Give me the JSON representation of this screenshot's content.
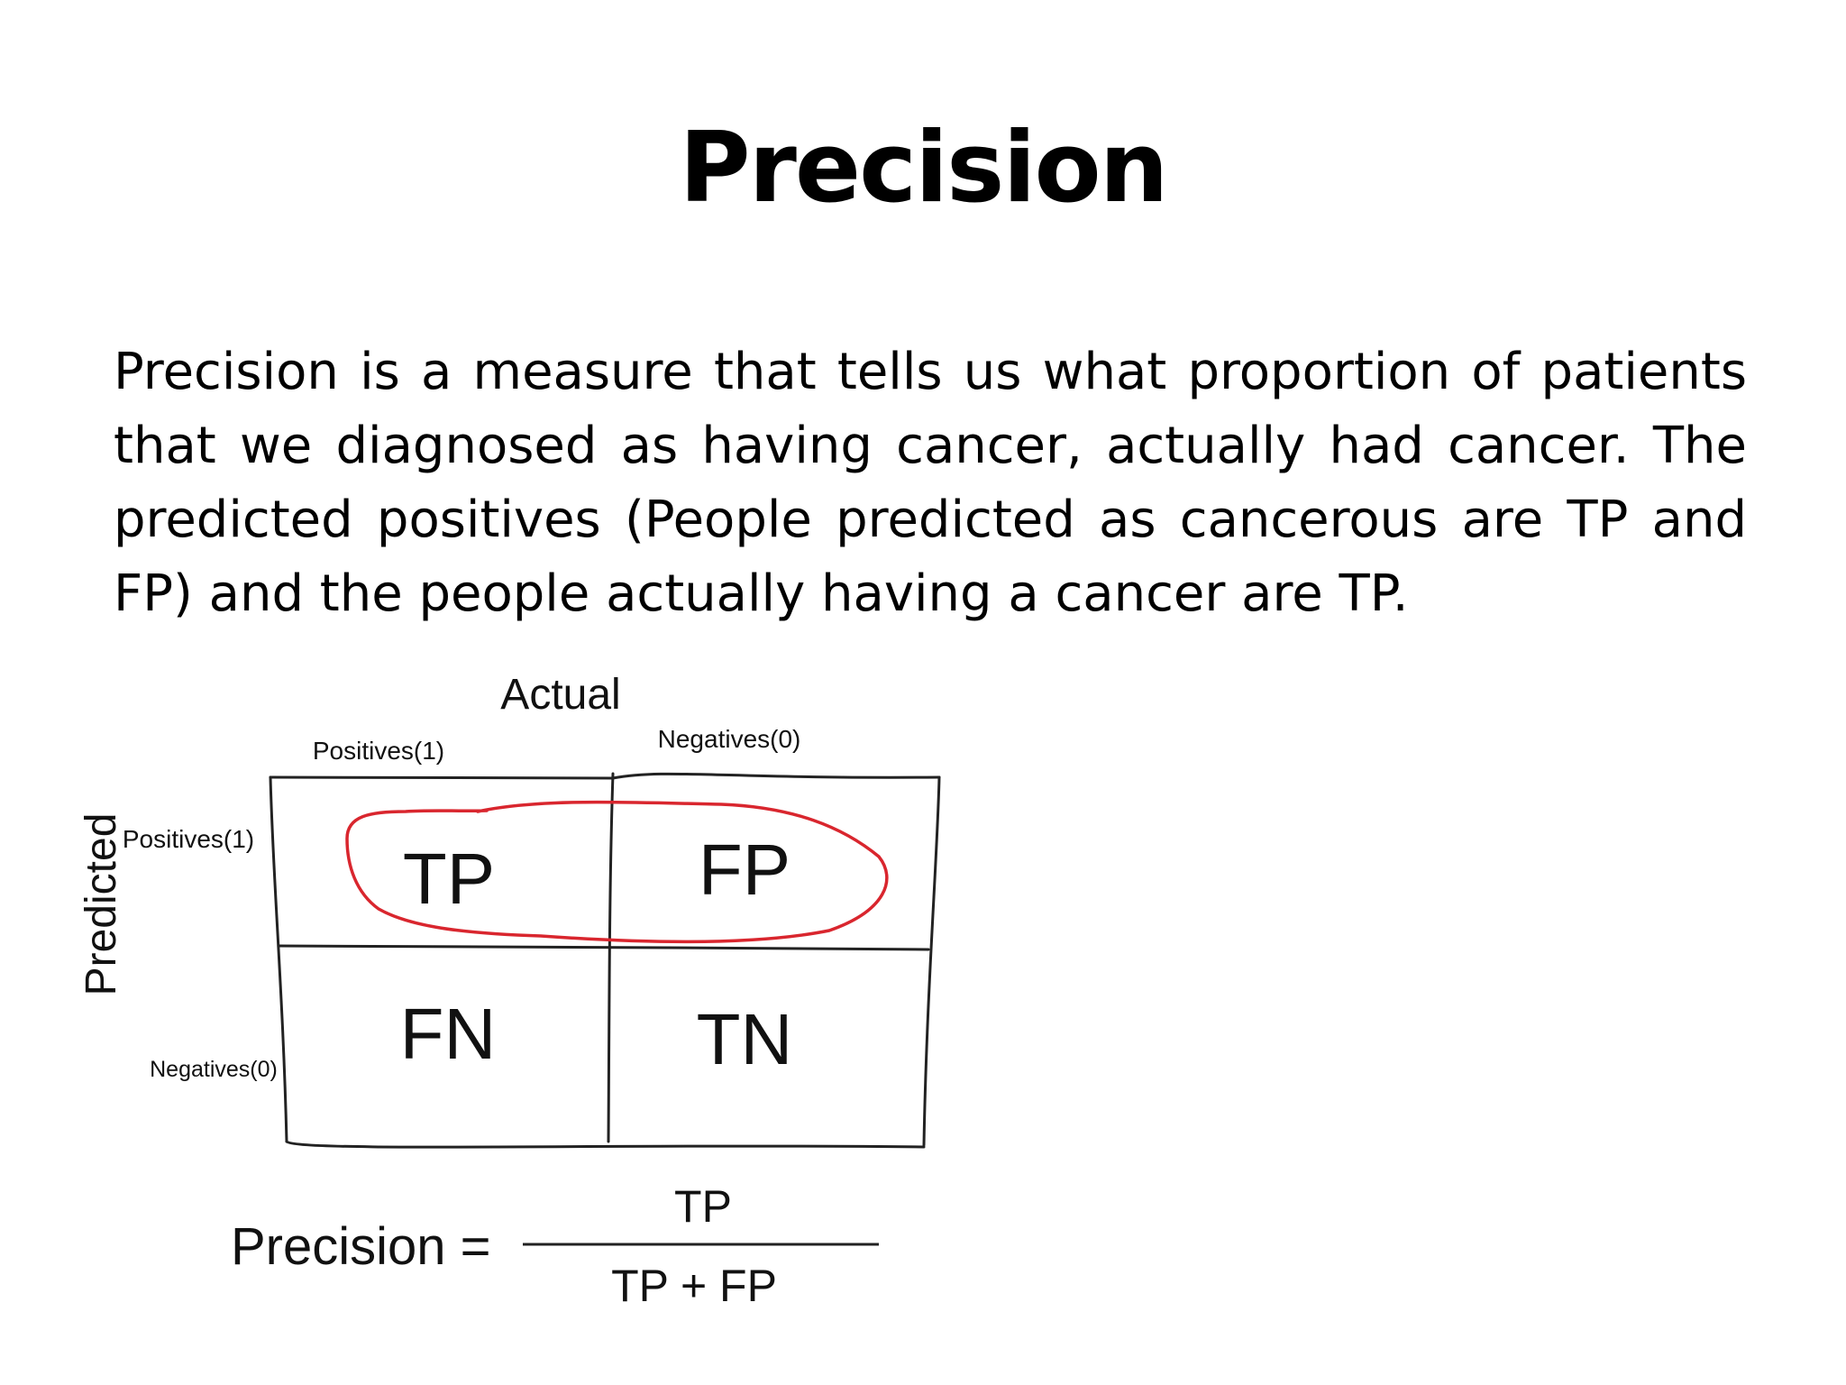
{
  "slide": {
    "title": "Precision",
    "body": "Precision is a measure that tells us what proportion of patients that we diagnosed as having cancer, actually had cancer. The predicted positives (People predicted as cancerous are TP and FP) and the people actually having a cancer are TP."
  },
  "matrix": {
    "actual_label": "Actual",
    "predicted_label": "Predicted",
    "col_positive": "Positives(1)",
    "col_negative": "Negatives(0)",
    "row_positive": "Positives(1)",
    "row_negative": "Negatives(0)",
    "cells": {
      "tp": "TP",
      "fp": "FP",
      "fn": "FN",
      "tn": "TN"
    },
    "highlight_color": "#d9262e"
  },
  "formula": {
    "lhs": "Precision =",
    "numerator": "TP",
    "denominator": "TP + FP"
  }
}
